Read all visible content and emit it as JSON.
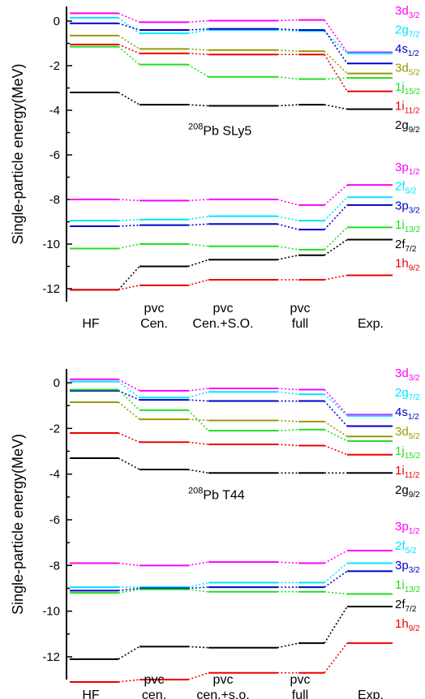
{
  "chart_data": [
    {
      "type": "line",
      "panel": "top",
      "annotation": {
        "mass": "208",
        "text": "Pb  SLy5"
      },
      "ylabel": "Single-particle energy(MeV)",
      "ylim": [
        -12.6,
        0.7
      ],
      "yticks": [
        0,
        -2,
        -4,
        -6,
        -8,
        -10,
        -12
      ],
      "categories": [
        {
          "lines": [
            "HF"
          ]
        },
        {
          "lines": [
            "pvc",
            "Cen."
          ]
        },
        {
          "lines": [
            "pvc",
            "Cen.+S.O."
          ]
        },
        {
          "lines": [
            "pvc",
            "full"
          ]
        },
        {
          "lines": [
            "Exp."
          ]
        }
      ],
      "series": [
        {
          "label": {
            "main": "3d",
            "sub": "3/2"
          },
          "color": "#ff00ff",
          "values": [
            0.35,
            -0.05,
            0.02,
            0.05,
            -1.4
          ]
        },
        {
          "label": {
            "main": "2g",
            "sub": "7/2"
          },
          "color": "#00e5ff",
          "values": [
            0.15,
            -0.55,
            -0.4,
            -0.45,
            -1.45
          ]
        },
        {
          "label": {
            "main": "4s",
            "sub": "1/2"
          },
          "color": "#0000cc",
          "values": [
            -0.1,
            -0.4,
            -0.35,
            -0.4,
            -1.9
          ]
        },
        {
          "label": {
            "main": "3d",
            "sub": "5/2"
          },
          "color": "#999900",
          "values": [
            -0.65,
            -1.25,
            -1.3,
            -1.35,
            -2.35
          ]
        },
        {
          "label": {
            "main": "1j",
            "sub": "15/2"
          },
          "color": "#22dd22",
          "values": [
            -1.15,
            -1.95,
            -2.5,
            -2.6,
            -2.55
          ]
        },
        {
          "label": {
            "main": "1i",
            "sub": "11/2"
          },
          "color": "#ee0000",
          "values": [
            -1.05,
            -1.45,
            -1.5,
            -1.5,
            -3.15
          ]
        },
        {
          "label": {
            "main": "2g",
            "sub": "9/2"
          },
          "color": "#000000",
          "values": [
            -3.2,
            -3.75,
            -3.8,
            -3.75,
            -3.95
          ]
        },
        {
          "label": {
            "main": "3p",
            "sub": "1/2"
          },
          "color": "#ff00ff",
          "values": [
            -8.0,
            -8.05,
            -8.0,
            -8.25,
            -7.35
          ]
        },
        {
          "label": {
            "main": "2f",
            "sub": "5/2"
          },
          "color": "#00e5ff",
          "values": [
            -8.95,
            -8.9,
            -8.75,
            -8.95,
            -7.9
          ]
        },
        {
          "label": {
            "main": "3p",
            "sub": "3/2"
          },
          "color": "#0000cc",
          "values": [
            -9.2,
            -9.15,
            -9.1,
            -9.35,
            -8.25
          ]
        },
        {
          "label": {
            "main": "1i",
            "sub": "13/2"
          },
          "color": "#22dd22",
          "values": [
            -10.2,
            -10.0,
            -10.1,
            -10.25,
            -9.25
          ]
        },
        {
          "label": {
            "main": "2f",
            "sub": "7/2"
          },
          "color": "#000000",
          "values": [
            -12.05,
            -11.0,
            -10.7,
            -10.5,
            -9.8
          ]
        },
        {
          "label": {
            "main": "1h",
            "sub": "9/2"
          },
          "color": "#ee0000",
          "values": [
            -12.05,
            -11.85,
            -11.6,
            -11.6,
            -11.4
          ]
        }
      ]
    },
    {
      "type": "line",
      "panel": "bottom",
      "annotation": {
        "mass": "208",
        "text": "Pb  T44"
      },
      "ylabel": "Single-particle energy(MeV)",
      "ylim": [
        -13.6,
        0.7
      ],
      "yticks": [
        0,
        -2,
        -4,
        -6,
        -8,
        -10,
        -12
      ],
      "categories": [
        {
          "lines": [
            "HF"
          ]
        },
        {
          "lines": [
            "pvc",
            "cen."
          ]
        },
        {
          "lines": [
            "pvc",
            "cen.+s.o."
          ]
        },
        {
          "lines": [
            "pvc",
            "full"
          ]
        },
        {
          "lines": [
            "Exp."
          ]
        }
      ],
      "series": [
        {
          "label": {
            "main": "3d",
            "sub": "3/2"
          },
          "color": "#ff00ff",
          "values": [
            0.15,
            -0.35,
            -0.25,
            -0.3,
            -1.4
          ]
        },
        {
          "label": {
            "main": "2g",
            "sub": "7/2"
          },
          "color": "#00e5ff",
          "values": [
            0.05,
            -0.65,
            -0.4,
            -0.5,
            -1.45
          ]
        },
        {
          "label": {
            "main": "4s",
            "sub": "1/2"
          },
          "color": "#0000cc",
          "values": [
            -0.35,
            -0.75,
            -0.8,
            -0.8,
            -1.9
          ]
        },
        {
          "label": {
            "main": "3d",
            "sub": "5/2"
          },
          "color": "#999900",
          "values": [
            -0.85,
            -1.6,
            -1.65,
            -1.7,
            -2.35
          ]
        },
        {
          "label": {
            "main": "1j",
            "sub": "15/2"
          },
          "color": "#22dd22",
          "values": [
            -0.3,
            -1.2,
            -2.1,
            -2.05,
            -2.55
          ]
        },
        {
          "label": {
            "main": "1i",
            "sub": "11/2"
          },
          "color": "#ee0000",
          "values": [
            -2.2,
            -2.6,
            -2.7,
            -2.75,
            -3.15
          ]
        },
        {
          "label": {
            "main": "2g",
            "sub": "9/2"
          },
          "color": "#000000",
          "values": [
            -3.3,
            -3.8,
            -3.95,
            -3.95,
            -3.95
          ]
        },
        {
          "label": {
            "main": "3p",
            "sub": "1/2"
          },
          "color": "#ff00ff",
          "values": [
            -7.9,
            -8.0,
            -7.85,
            -7.9,
            -7.35
          ]
        },
        {
          "label": {
            "main": "2f",
            "sub": "5/2"
          },
          "color": "#00e5ff",
          "values": [
            -8.95,
            -8.95,
            -8.75,
            -8.75,
            -7.9
          ]
        },
        {
          "label": {
            "main": "3p",
            "sub": "3/2"
          },
          "color": "#0000cc",
          "values": [
            -9.1,
            -9.0,
            -8.95,
            -8.95,
            -8.25
          ]
        },
        {
          "label": {
            "main": "1i",
            "sub": "13/2"
          },
          "color": "#22dd22",
          "values": [
            -9.2,
            -9.05,
            -9.15,
            -9.15,
            -9.25
          ]
        },
        {
          "label": {
            "main": "2f",
            "sub": "7/2"
          },
          "color": "#000000",
          "values": [
            -12.1,
            -11.55,
            -11.6,
            -11.4,
            -9.8
          ]
        },
        {
          "label": {
            "main": "1h",
            "sub": "9/2"
          },
          "color": "#ee0000",
          "values": [
            -13.1,
            -13.0,
            -12.7,
            -12.7,
            -11.4
          ]
        }
      ]
    }
  ]
}
